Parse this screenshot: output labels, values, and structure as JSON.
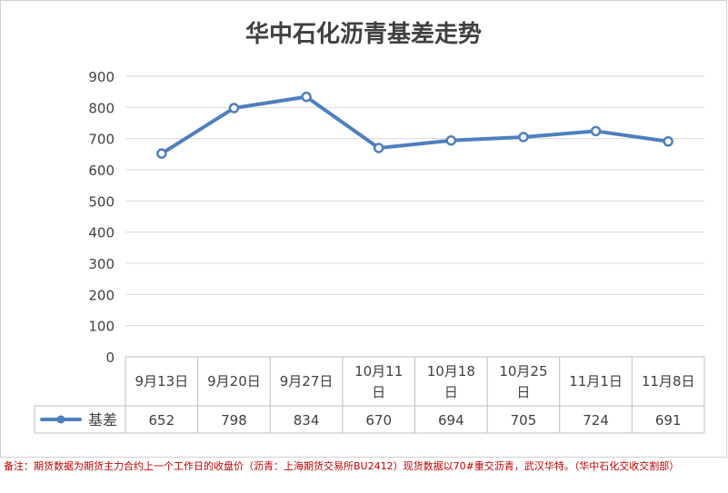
{
  "chart_data": {
    "type": "line",
    "title": "华中石化沥青基差走势",
    "categories": [
      "9月13日",
      "9月20日",
      "9月27日",
      "10月11日",
      "10月18日",
      "10月25日",
      "11月1日",
      "11月8日"
    ],
    "series": [
      {
        "name": "基差",
        "values": [
          652,
          798,
          834,
          670,
          694,
          705,
          724,
          691
        ]
      }
    ],
    "yticks": [
      "0",
      "100",
      "200",
      "300",
      "400",
      "500",
      "600",
      "700",
      "800",
      "900"
    ],
    "ylim": [
      0,
      900
    ],
    "grid": true,
    "legend": "data-table",
    "colors": {
      "line": "#4f7fbd",
      "marker_fill": "#ffffff",
      "grid": "#d9d9d9",
      "text": "#404040",
      "note": "#c00000"
    },
    "data_table": true
  },
  "footnote": "备注：期货数据为期货主力合约上一个工作日的收盘价（沥青：上海期货交易所BU2412）现货数据以70#重交沥青，武汉华特。（华中石化交收交割部）"
}
